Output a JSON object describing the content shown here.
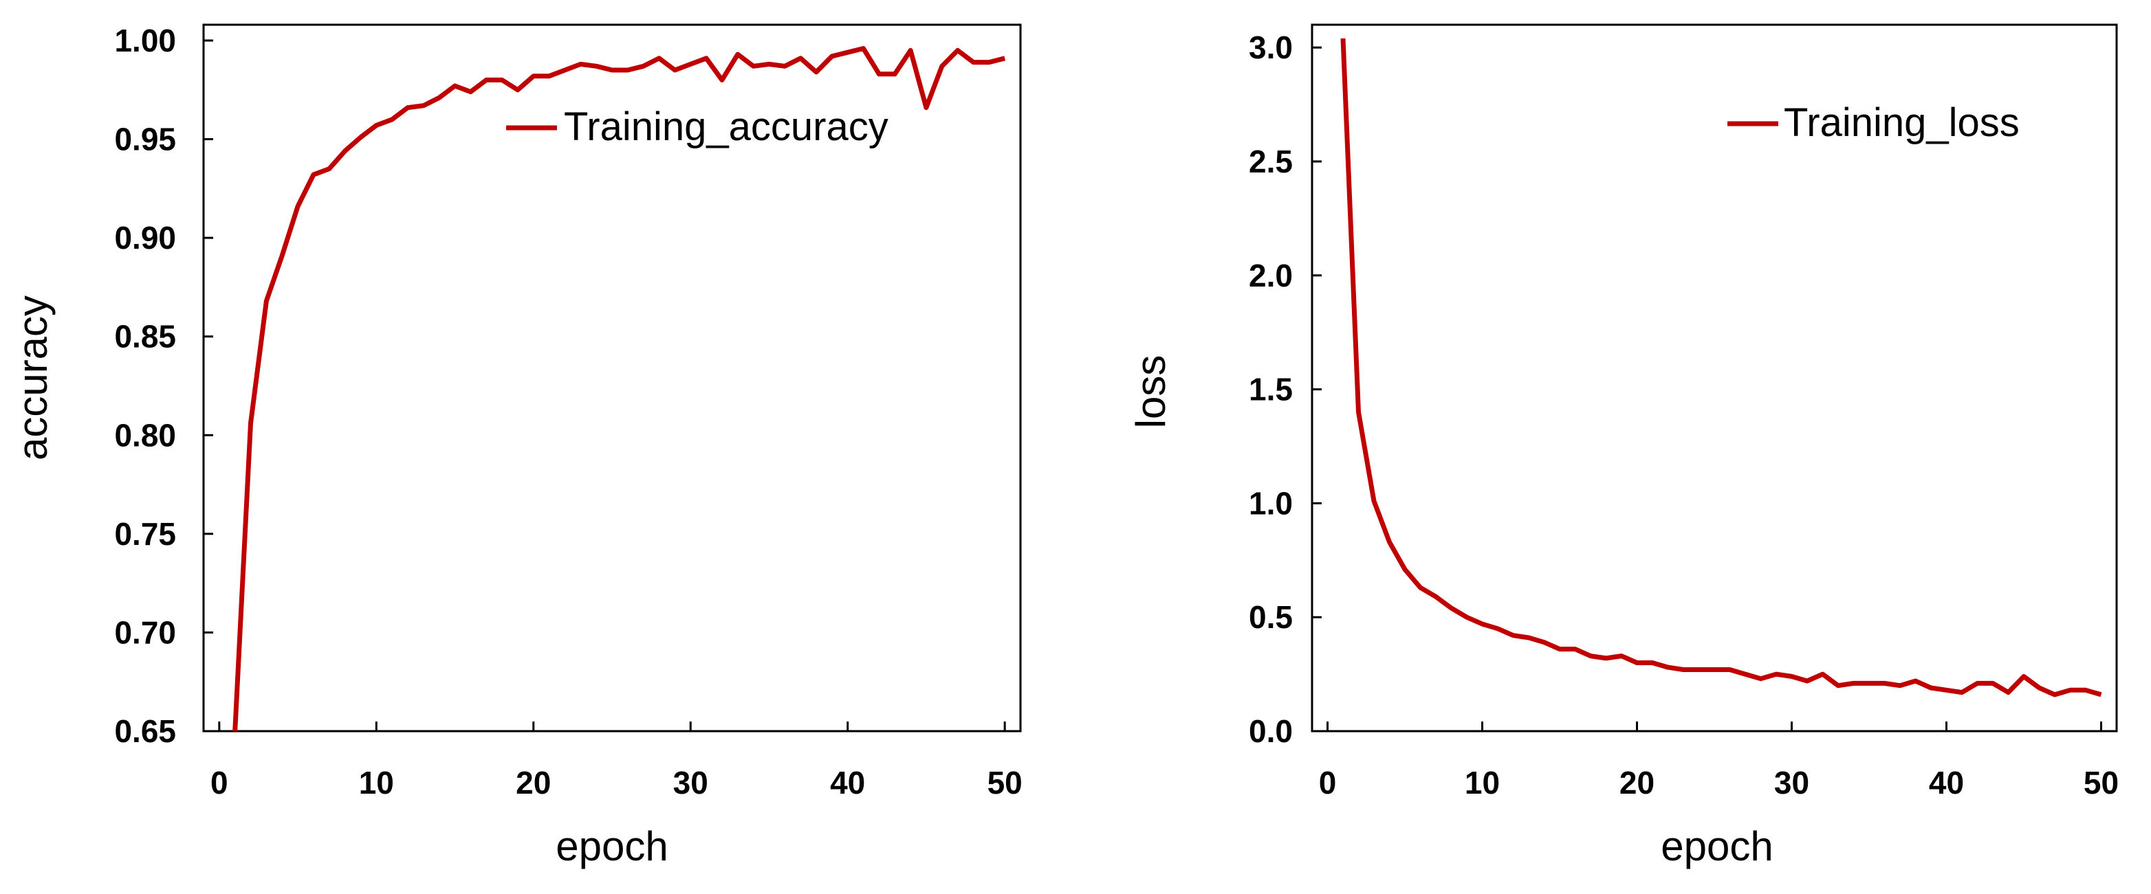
{
  "chart_data": [
    {
      "type": "line",
      "title": "",
      "xlabel": "epoch",
      "ylabel": "accuracy",
      "xlim": [
        -1,
        51
      ],
      "ylim": [
        0.65,
        1.008
      ],
      "xticks": [
        0,
        10,
        20,
        30,
        40,
        50
      ],
      "yticks": [
        0.65,
        0.7,
        0.75,
        0.8,
        0.85,
        0.9,
        0.95,
        1.0
      ],
      "ytick_labels": [
        "0.65",
        "0.70",
        "0.75",
        "0.80",
        "0.85",
        "0.90",
        "0.95",
        "1.00"
      ],
      "legend_position": "top-right",
      "grid": false,
      "series": [
        {
          "name": "Training_accuracy",
          "color": "#c00000",
          "x": [
            1,
            2,
            3,
            4,
            5,
            6,
            7,
            8,
            9,
            10,
            11,
            12,
            13,
            14,
            15,
            16,
            17,
            18,
            19,
            20,
            21,
            22,
            23,
            24,
            25,
            26,
            27,
            28,
            29,
            30,
            31,
            32,
            33,
            34,
            35,
            36,
            37,
            38,
            39,
            40,
            41,
            42,
            43,
            44,
            45,
            46,
            47,
            48,
            49,
            50
          ],
          "y": [
            0.65,
            0.806,
            0.868,
            0.891,
            0.916,
            0.932,
            0.935,
            0.944,
            0.951,
            0.957,
            0.96,
            0.966,
            0.967,
            0.971,
            0.977,
            0.974,
            0.98,
            0.98,
            0.975,
            0.982,
            0.982,
            0.985,
            0.988,
            0.987,
            0.985,
            0.985,
            0.987,
            0.991,
            0.985,
            0.988,
            0.991,
            0.98,
            0.993,
            0.987,
            0.988,
            0.987,
            0.991,
            0.984,
            0.992,
            0.994,
            0.996,
            0.983,
            0.983,
            0.995,
            0.966,
            0.987,
            0.995,
            0.989,
            0.989,
            0.991
          ]
        }
      ]
    },
    {
      "type": "line",
      "title": "",
      "xlabel": "epoch",
      "ylabel": "loss",
      "xlim": [
        -1,
        51
      ],
      "ylim": [
        0,
        3.1
      ],
      "xticks": [
        0,
        10,
        20,
        30,
        40,
        50
      ],
      "yticks": [
        0,
        0.5,
        1,
        1.5,
        2,
        2.5,
        3
      ],
      "ytick_labels": [
        "0.0",
        "0.5",
        "1.0",
        "1.5",
        "2.0",
        "2.5",
        "3.0"
      ],
      "legend_position": "top-right",
      "grid": false,
      "series": [
        {
          "name": "Training_loss",
          "color": "#c00000",
          "x": [
            1,
            2,
            3,
            4,
            5,
            6,
            7,
            8,
            9,
            10,
            11,
            12,
            13,
            14,
            15,
            16,
            17,
            18,
            19,
            20,
            21,
            22,
            23,
            24,
            25,
            26,
            27,
            28,
            29,
            30,
            31,
            32,
            33,
            34,
            35,
            36,
            37,
            38,
            39,
            40,
            41,
            42,
            43,
            44,
            45,
            46,
            47,
            48,
            49,
            50
          ],
          "y": [
            3.04,
            1.4,
            1.01,
            0.83,
            0.71,
            0.63,
            0.59,
            0.54,
            0.5,
            0.47,
            0.45,
            0.42,
            0.41,
            0.39,
            0.36,
            0.36,
            0.33,
            0.32,
            0.33,
            0.3,
            0.3,
            0.28,
            0.27,
            0.27,
            0.27,
            0.27,
            0.25,
            0.23,
            0.25,
            0.24,
            0.22,
            0.25,
            0.2,
            0.21,
            0.21,
            0.21,
            0.2,
            0.22,
            0.19,
            0.18,
            0.17,
            0.21,
            0.21,
            0.17,
            0.24,
            0.19,
            0.16,
            0.18,
            0.18,
            0.16
          ]
        }
      ]
    }
  ]
}
